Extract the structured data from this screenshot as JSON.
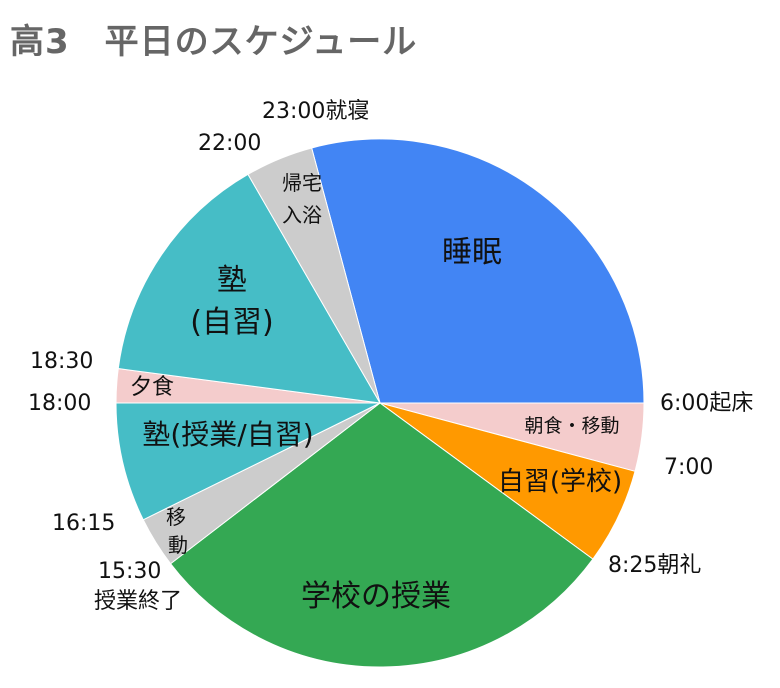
{
  "chart_data": {
    "type": "pie",
    "title": "高3　平日のスケジュール",
    "slices": [
      {
        "label": "睡眠",
        "start": "23:00",
        "end": "6:00",
        "hours": 7.0,
        "color": "#4285f4"
      },
      {
        "label": "朝食・移動",
        "start": "6:00",
        "end": "7:00",
        "hours": 1.0,
        "color": "#f4cccc"
      },
      {
        "label": "自習(学校)",
        "start": "7:00",
        "end": "8:25",
        "hours": 1.4167,
        "color": "#ff9900"
      },
      {
        "label": "学校の授業",
        "start": "8:25",
        "end": "15:30",
        "hours": 7.0833,
        "color": "#34a853"
      },
      {
        "label": "移動",
        "start": "15:30",
        "end": "16:15",
        "hours": 0.75,
        "color": "#cccccc"
      },
      {
        "label": "塾(授業/自習)",
        "start": "16:15",
        "end": "18:00",
        "hours": 1.75,
        "color": "#46bdc6"
      },
      {
        "label": "夕食",
        "start": "18:00",
        "end": "18:30",
        "hours": 0.5,
        "color": "#f4cccc"
      },
      {
        "label": "塾(自習)",
        "start": "18:30",
        "end": "22:00",
        "hours": 3.5,
        "color": "#46bdc6"
      },
      {
        "label": "帰宅入浴",
        "start": "22:00",
        "end": "23:00",
        "hours": 1.0,
        "color": "#cccccc"
      }
    ],
    "time_labels": [
      "6:00起床",
      "7:00",
      "8:25朝礼",
      "15:30",
      "授業終了",
      "16:15",
      "18:00",
      "18:30",
      "22:00",
      "23:00就寝"
    ]
  }
}
